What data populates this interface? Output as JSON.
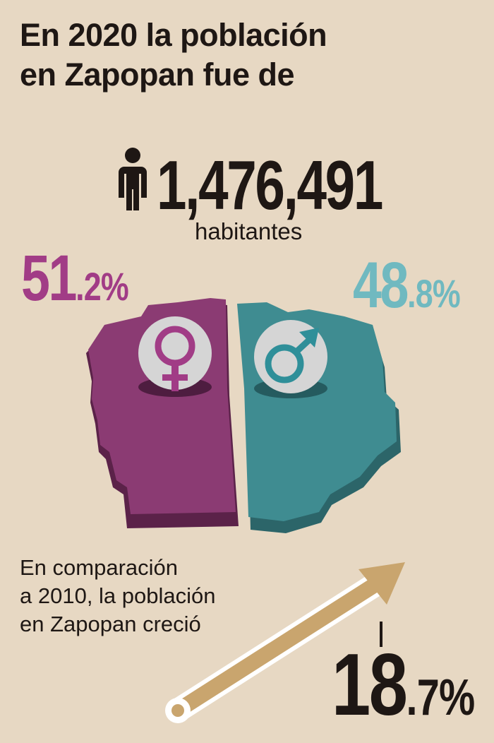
{
  "title": {
    "line1": "En 2020 la población",
    "line2": "en Zapopan fue de"
  },
  "population": {
    "total": "1,476,491",
    "unit": "habitantes",
    "icon": "person-icon"
  },
  "female": {
    "pct_int": "51",
    "pct_dec": ".2%",
    "value": 51.2,
    "color": "#8b3b73",
    "icon": "female-symbol-icon"
  },
  "male": {
    "pct_int": "48",
    "pct_dec": ".8%",
    "value": 48.8,
    "color": "#3f8c91",
    "icon": "male-symbol-icon"
  },
  "comparison": {
    "line1": "En comparación",
    "line2": "a 2010, la población",
    "line3": "en Zapopan creció"
  },
  "growth": {
    "pct_int": "18",
    "pct_dec": ".7%",
    "value": 18.7,
    "color": "#c9a56e",
    "icon": "growth-arrow-icon"
  }
}
